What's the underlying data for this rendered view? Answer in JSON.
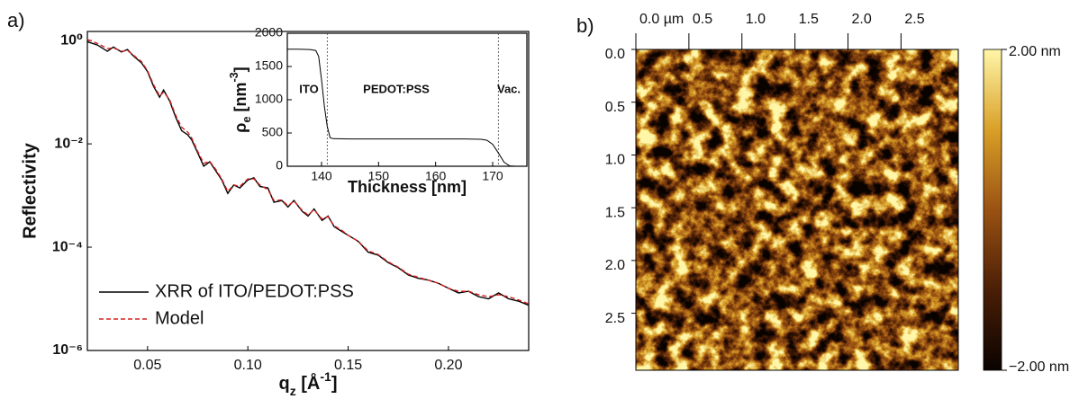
{
  "chart_data": [
    {
      "type": "line",
      "panel_label": "a)",
      "x_label": [
        "q",
        "z",
        " [Å",
        "-1",
        "]"
      ],
      "y_label": "Reflectivity",
      "log_y": true,
      "x": [
        0.02,
        0.025,
        0.03,
        0.033,
        0.037,
        0.04,
        0.043,
        0.047,
        0.05,
        0.053,
        0.056,
        0.058,
        0.061,
        0.064,
        0.067,
        0.07,
        0.072,
        0.075,
        0.078,
        0.081,
        0.084,
        0.087,
        0.09,
        0.093,
        0.096,
        0.1,
        0.103,
        0.106,
        0.11,
        0.113,
        0.117,
        0.12,
        0.123,
        0.127,
        0.13,
        0.133,
        0.137,
        0.14,
        0.143,
        0.147,
        0.15,
        0.155,
        0.16,
        0.165,
        0.17,
        0.175,
        0.18,
        0.185,
        0.19,
        0.195,
        0.2,
        0.205,
        0.21,
        0.215,
        0.22,
        0.225,
        0.23,
        0.235,
        0.24
      ],
      "series": [
        {
          "name": "XRR of ITO/PEDOT:PSS",
          "color": "#000000",
          "dash": false,
          "values": [
            0.95,
            0.82,
            0.62,
            0.75,
            0.6,
            0.67,
            0.5,
            0.37,
            0.25,
            0.13,
            0.08,
            0.11,
            0.068,
            0.033,
            0.018,
            0.015,
            0.012,
            0.0067,
            0.0037,
            0.0045,
            0.003,
            0.002,
            0.0011,
            0.0016,
            0.0014,
            0.002,
            0.0022,
            0.0015,
            0.0014,
            0.00074,
            0.0008,
            0.0006,
            0.0008,
            0.0005,
            0.0004,
            0.00055,
            0.00033,
            0.0004,
            0.00025,
            0.0002,
            0.00017,
            0.00013,
            8e-05,
            7e-05,
            5e-05,
            4e-05,
            2.9e-05,
            2.5e-05,
            2.3e-05,
            2e-05,
            1.6e-05,
            1.3e-05,
            1.4e-05,
            1.1e-05,
            1e-05,
            1.3e-05,
            1e-05,
            9e-06,
            7.5e-06
          ]
        },
        {
          "name": "Model",
          "color": "#d62020",
          "dash": true,
          "values": [
            1.05,
            0.88,
            0.7,
            0.72,
            0.62,
            0.64,
            0.52,
            0.39,
            0.26,
            0.14,
            0.085,
            0.1,
            0.072,
            0.036,
            0.021,
            0.017,
            0.013,
            0.0072,
            0.0042,
            0.0046,
            0.0032,
            0.0021,
            0.0012,
            0.0016,
            0.0015,
            0.0021,
            0.0021,
            0.0016,
            0.0013,
            0.0008,
            0.00082,
            0.00063,
            0.00078,
            0.00052,
            0.00042,
            0.00053,
            0.00035,
            0.00039,
            0.00026,
            0.00021,
            0.00017,
            0.00013,
            8.5e-05,
            7.2e-05,
            5.2e-05,
            4.1e-05,
            3e-05,
            2.6e-05,
            2.3e-05,
            2e-05,
            1.6e-05,
            1.4e-05,
            1.4e-05,
            1.2e-05,
            1.1e-05,
            1.2e-05,
            1.1e-05,
            9.5e-06,
            8e-06
          ]
        }
      ],
      "xlim": [
        0.02,
        0.24
      ],
      "xticks": [
        0.05,
        {
          "value": 0.1,
          "label": "0.10"
        },
        0.15,
        {
          "value": 0.2,
          "label": "0.20"
        }
      ],
      "ylim": [
        1e-06,
        1.5
      ],
      "yticks": [
        {
          "value": 1,
          "label": "10⁰"
        },
        {
          "value": 0.01,
          "label": "10⁻²"
        },
        {
          "value": 0.0001,
          "label": "10⁻⁴"
        },
        {
          "value": 1e-06,
          "label": "10⁻⁶"
        }
      ],
      "legend": "lower left",
      "inset": {
        "type": "line",
        "x_label": "Thickness [nm]",
        "y_label": [
          "ρ",
          "e",
          " [nm",
          "-3",
          "]"
        ],
        "x": [
          134,
          136,
          138,
          139,
          139.5,
          140,
          140.5,
          141,
          141.5,
          142,
          145,
          150,
          155,
          160,
          165,
          168,
          169,
          170,
          171,
          172,
          173,
          174,
          176
        ],
        "values": [
          1760,
          1760,
          1755,
          1740,
          1650,
          1300,
          900,
          600,
          430,
          415,
          410,
          410,
          410,
          410,
          410,
          405,
          390,
          330,
          200,
          60,
          5,
          0,
          0
        ],
        "color": "#000000",
        "xlim": [
          134,
          176
        ],
        "xticks": [
          140,
          150,
          160,
          170
        ],
        "ylim": [
          0,
          2000
        ],
        "yticks": [
          0,
          500,
          1000,
          1500,
          2000
        ],
        "vlines": [
          141,
          171
        ],
        "annotations": [
          "ITO",
          "PEDOT:PSS",
          "Vac."
        ]
      }
    },
    {
      "type": "heatmap",
      "panel_label": "b)",
      "xlim": [
        0,
        3.04
      ],
      "ylim": [
        0,
        3.04
      ],
      "xticks": [
        {
          "value": 0,
          "label": "0.0 µm"
        },
        0.5,
        {
          "value": 1,
          "label": "1.0"
        },
        1.5,
        {
          "value": 2,
          "label": "2.0"
        },
        2.5
      ],
      "yticks": [
        {
          "value": 0,
          "label": "0.0"
        },
        0.5,
        {
          "value": 1,
          "label": "1.0"
        },
        1.5,
        {
          "value": 2,
          "label": "2.0"
        },
        2.5
      ],
      "zlim": [
        -2,
        2
      ],
      "colorbar_ticks": [
        {
          "value": 2,
          "label": "2.00 nm"
        },
        {
          "value": -2,
          "label": "−2.00 nm"
        }
      ],
      "colormap": [
        "#0a0300",
        "#4a1e06",
        "#9a5212",
        "#d9a028",
        "#fff6a8"
      ]
    }
  ]
}
